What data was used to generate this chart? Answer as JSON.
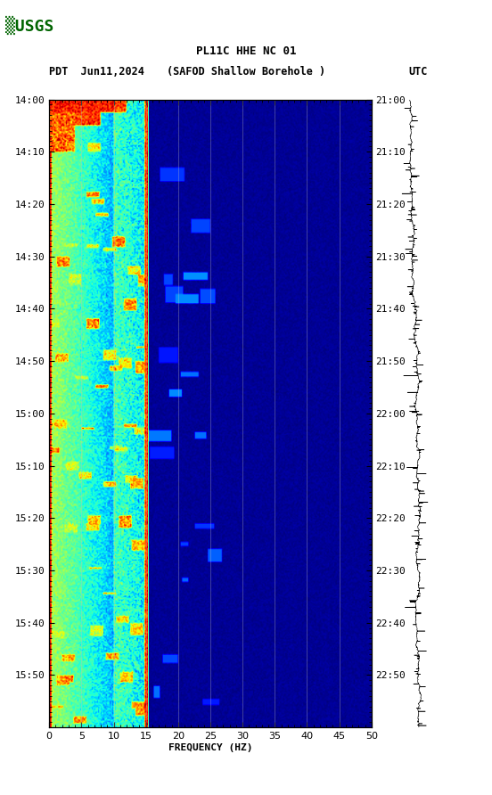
{
  "title_line1": "PL11C HHE NC 01",
  "title_line2_left": "PDT  Jun11,2024",
  "title_line2_center": "(SAFOD Shallow Borehole )",
  "title_line2_right": "UTC",
  "left_times": [
    "14:00",
    "14:10",
    "14:20",
    "14:30",
    "14:40",
    "14:50",
    "15:00",
    "15:10",
    "15:20",
    "15:30",
    "15:40",
    "15:50"
  ],
  "right_times": [
    "21:00",
    "21:10",
    "21:20",
    "21:30",
    "21:40",
    "21:50",
    "22:00",
    "22:10",
    "22:20",
    "22:30",
    "22:40",
    "22:50"
  ],
  "xlabel": "FREQUENCY (HZ)",
  "freq_min": 0,
  "freq_max": 50,
  "freq_ticks": [
    0,
    5,
    10,
    15,
    20,
    25,
    30,
    35,
    40,
    45,
    50
  ],
  "time_label_fontsize": 8,
  "axis_label_fontsize": 8,
  "title_fontsize": 9,
  "background_color": "white",
  "usgs_color": "#006400"
}
